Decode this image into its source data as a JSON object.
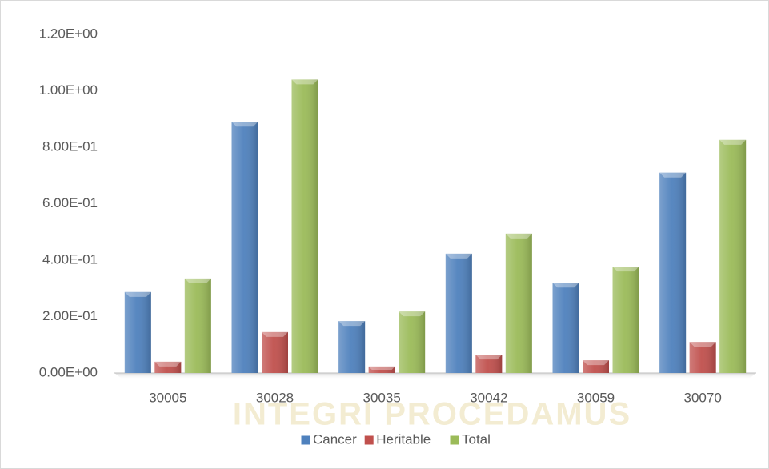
{
  "chart_data": {
    "type": "bar",
    "watermark": "INTEGRI PROCEDAMUS",
    "categories": [
      "30005",
      "30028",
      "30035",
      "30042",
      "30059",
      "30070"
    ],
    "series": [
      {
        "name": "Cancer",
        "color": "#4f81bd",
        "values": [
          0.287,
          0.89,
          0.184,
          0.423,
          0.32,
          0.71
        ]
      },
      {
        "name": "Heritable",
        "color": "#c0504d",
        "values": [
          0.04,
          0.145,
          0.023,
          0.065,
          0.045,
          0.11
        ]
      },
      {
        "name": "Total",
        "color": "#9bbb59",
        "values": [
          0.335,
          1.04,
          0.218,
          0.494,
          0.377,
          0.826
        ]
      }
    ],
    "ylim": [
      0,
      1.2
    ],
    "yticks": [
      {
        "value": 0,
        "label": "0.00E+00"
      },
      {
        "value": 0.2,
        "label": "2.00E-01"
      },
      {
        "value": 0.4,
        "label": "4.00E-01"
      },
      {
        "value": 0.6,
        "label": "6.00E-01"
      },
      {
        "value": 0.8,
        "label": "8.00E-01"
      },
      {
        "value": 1.0,
        "label": "1.00E+00"
      },
      {
        "value": 1.2,
        "label": "1.20E+00"
      }
    ],
    "grid": false,
    "legend": "bottom"
  }
}
